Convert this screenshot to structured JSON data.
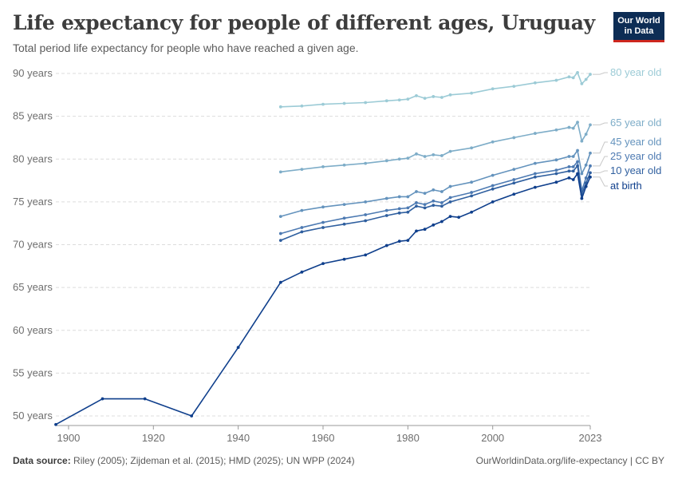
{
  "header": {
    "title": "Life expectancy for people of different ages, Uruguay",
    "subtitle": "Total period life expectancy for people who have reached a given age."
  },
  "logo": {
    "line1": "Our World",
    "line2": "in Data",
    "bg_color": "#0d2d55",
    "accent_color": "#ce261e"
  },
  "footer": {
    "source_label": "Data source:",
    "source_text": "Riley (2005); Zijdeman et al. (2015); HMD (2025); UN WPP (2024)",
    "url": "OurWorldinData.org/life-expectancy | CC BY"
  },
  "chart_data": {
    "type": "line",
    "title": "Life expectancy for people of different ages, Uruguay",
    "xlabel": "",
    "ylabel": "",
    "xlim": [
      1897,
      2023
    ],
    "ylim": [
      49,
      91
    ],
    "grid": true,
    "x_ticks": [
      1900,
      1920,
      1940,
      1960,
      1980,
      2000,
      2023
    ],
    "y_ticks": [
      {
        "value": 50,
        "label": "50 years"
      },
      {
        "value": 55,
        "label": "55 years"
      },
      {
        "value": 60,
        "label": "60 years"
      },
      {
        "value": 65,
        "label": "65 years"
      },
      {
        "value": 70,
        "label": "70 years"
      },
      {
        "value": 75,
        "label": "75 years"
      },
      {
        "value": 80,
        "label": "80 years"
      },
      {
        "value": 85,
        "label": "85 years"
      },
      {
        "value": 90,
        "label": "90 years"
      }
    ],
    "legend_placement": "right, labels at line ends",
    "series": [
      {
        "name": "80 year old",
        "color": "#9ccbd6",
        "x": [
          1950,
          1955,
          1960,
          1965,
          1970,
          1975,
          1978,
          1980,
          1982,
          1984,
          1986,
          1988,
          1990,
          1995,
          2000,
          2005,
          2010,
          2015,
          2018,
          2019,
          2020,
          2021,
          2022,
          2023
        ],
        "y": [
          86.1,
          86.2,
          86.4,
          86.5,
          86.6,
          86.8,
          86.9,
          87.0,
          87.4,
          87.1,
          87.3,
          87.2,
          87.5,
          87.7,
          88.2,
          88.5,
          88.9,
          89.2,
          89.6,
          89.5,
          90.1,
          88.8,
          89.3,
          89.9
        ]
      },
      {
        "name": "65 year old",
        "color": "#7eadc8",
        "x": [
          1950,
          1955,
          1960,
          1965,
          1970,
          1975,
          1978,
          1980,
          1982,
          1984,
          1986,
          1988,
          1990,
          1995,
          2000,
          2005,
          2010,
          2015,
          2018,
          2019,
          2020,
          2021,
          2022,
          2023
        ],
        "y": [
          78.5,
          78.8,
          79.1,
          79.3,
          79.5,
          79.8,
          80.0,
          80.1,
          80.6,
          80.3,
          80.5,
          80.4,
          80.9,
          81.3,
          82.0,
          82.5,
          83.0,
          83.4,
          83.7,
          83.6,
          84.3,
          82.1,
          82.9,
          84.0
        ]
      },
      {
        "name": "45 year old",
        "color": "#6493bd",
        "x": [
          1950,
          1955,
          1960,
          1965,
          1970,
          1975,
          1978,
          1980,
          1982,
          1984,
          1986,
          1988,
          1990,
          1995,
          2000,
          2005,
          2010,
          2015,
          2018,
          2019,
          2020,
          2021,
          2022,
          2023
        ],
        "y": [
          73.3,
          74.0,
          74.4,
          74.7,
          75.0,
          75.4,
          75.6,
          75.6,
          76.2,
          76.0,
          76.4,
          76.2,
          76.8,
          77.3,
          78.1,
          78.8,
          79.5,
          79.9,
          80.3,
          80.3,
          81.0,
          78.3,
          79.3,
          80.7
        ]
      },
      {
        "name": "25 year old",
        "color": "#4d7ab2",
        "x": [
          1950,
          1955,
          1960,
          1965,
          1970,
          1975,
          1978,
          1980,
          1982,
          1984,
          1986,
          1988,
          1990,
          1995,
          2000,
          2005,
          2010,
          2015,
          2018,
          2019,
          2020,
          2021,
          2022,
          2023
        ],
        "y": [
          71.3,
          72.0,
          72.6,
          73.1,
          73.5,
          74.0,
          74.2,
          74.3,
          74.9,
          74.7,
          75.1,
          74.9,
          75.5,
          76.1,
          76.9,
          77.6,
          78.3,
          78.7,
          79.1,
          79.1,
          79.7,
          76.3,
          77.8,
          79.2
        ]
      },
      {
        "name": "10 year old",
        "color": "#2f5f9f",
        "x": [
          1950,
          1955,
          1960,
          1965,
          1970,
          1975,
          1978,
          1980,
          1982,
          1984,
          1986,
          1988,
          1990,
          1995,
          2000,
          2005,
          2010,
          2015,
          2018,
          2019,
          2020,
          2021,
          2022,
          2023
        ],
        "y": [
          70.5,
          71.5,
          72.0,
          72.4,
          72.8,
          73.4,
          73.7,
          73.8,
          74.5,
          74.3,
          74.6,
          74.5,
          75.0,
          75.7,
          76.5,
          77.2,
          77.9,
          78.3,
          78.6,
          78.6,
          79.2,
          75.9,
          77.2,
          78.4
        ]
      },
      {
        "name": "at birth",
        "color": "#0f3f8c",
        "x": [
          1897,
          1908,
          1918,
          1929,
          1940,
          1950,
          1955,
          1960,
          1965,
          1970,
          1975,
          1978,
          1980,
          1982,
          1984,
          1986,
          1988,
          1990,
          1992,
          1995,
          2000,
          2005,
          2010,
          2015,
          2018,
          2019,
          2020,
          2021,
          2022,
          2023
        ],
        "y": [
          49.0,
          52.0,
          52.0,
          50.0,
          58.0,
          65.6,
          66.8,
          67.8,
          68.3,
          68.8,
          69.9,
          70.4,
          70.5,
          71.6,
          71.8,
          72.3,
          72.7,
          73.3,
          73.2,
          73.8,
          75.0,
          75.9,
          76.7,
          77.3,
          77.8,
          77.6,
          78.3,
          75.4,
          76.8,
          77.9
        ]
      }
    ]
  }
}
